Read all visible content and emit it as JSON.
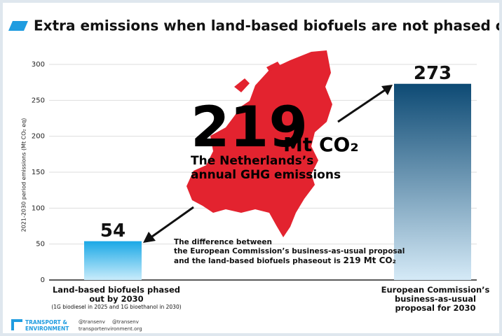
{
  "chart_data": {
    "type": "bar",
    "title": "Extra emissions when land-based biofuels are not phased out",
    "y_label": "2021-2030 period emissions (Mt CO₂ eq)",
    "categories": [
      "Land-based biofuels phased out by 2030",
      "European Commission’s business-as-usual proposal for 2030"
    ],
    "category_note": "(1G biodiesel in 2025 and 1G bioethanol in 2030)",
    "values": [
      54,
      273
    ],
    "colors": [
      "#1aa8e6",
      "#0d4a74"
    ],
    "ylim": [
      0,
      300
    ],
    "yticks": [
      0,
      50,
      100,
      150,
      200,
      250,
      300
    ],
    "grid": true,
    "annotation": {
      "number": "219",
      "unit": "Mt CO₂",
      "lines": [
        "The Netherlands’s",
        "annual GHG emissions"
      ]
    },
    "difference": {
      "lines": [
        "The difference between",
        "the European Commission’s business-as-usual proposal",
        "and the land-based biofuels phaseout is"
      ],
      "value": "219 Mt CO₂"
    },
    "footer": {
      "brand": "TRANSPORT & ENVIRONMENT",
      "twitter": "@transenv",
      "facebook": "@transenv",
      "website": "transportenvironment.org"
    }
  }
}
